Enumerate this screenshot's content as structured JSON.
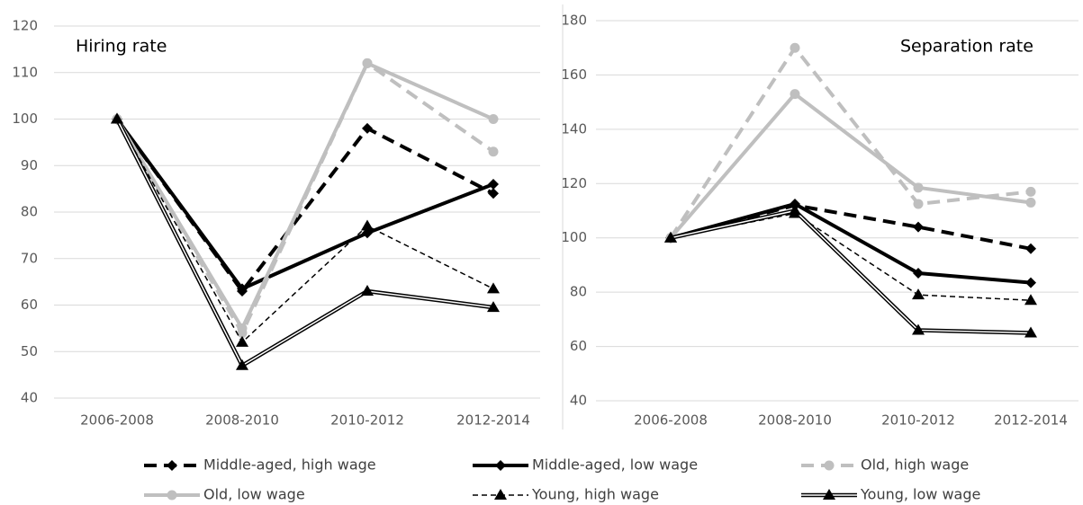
{
  "chart_data": [
    {
      "type": "line",
      "title": "Hiring rate",
      "categories": [
        "2006-2008",
        "2008-2010",
        "2010-2012",
        "2012-2014"
      ],
      "ylim": [
        40,
        120
      ],
      "yticks": [
        40,
        50,
        60,
        70,
        80,
        90,
        100,
        110,
        120
      ],
      "grid": true,
      "series": [
        {
          "name": "Middle-aged, high wage",
          "color": "#000000",
          "dash": true,
          "marker": "diamond",
          "values": [
            100,
            63,
            98,
            84
          ]
        },
        {
          "name": "Middle-aged, low wage",
          "color": "#000000",
          "dash": false,
          "marker": "diamond",
          "values": [
            100,
            63.5,
            75.5,
            86
          ]
        },
        {
          "name": "Old, high wage",
          "color": "#bfbfbf",
          "dash": true,
          "marker": "circle",
          "values": [
            100,
            54,
            112,
            93
          ]
        },
        {
          "name": "Old, low wage",
          "color": "#bfbfbf",
          "dash": false,
          "marker": "circle",
          "values": [
            100,
            55,
            112,
            100
          ]
        },
        {
          "name": "Young, high wage",
          "color": "#000000",
          "dash": true,
          "marker": "triangle",
          "thin": true,
          "values": [
            100,
            52,
            77,
            63.5
          ]
        },
        {
          "name": "Young, low wage",
          "color": "#000000",
          "dash": false,
          "marker": "triangle",
          "double": true,
          "values": [
            100,
            47,
            63,
            59.5
          ]
        }
      ]
    },
    {
      "type": "line",
      "title": "Separation rate",
      "categories": [
        "2006-2008",
        "2008-2010",
        "2010-2012",
        "2012-2014"
      ],
      "ylim": [
        40,
        180
      ],
      "yticks": [
        40,
        60,
        80,
        100,
        120,
        140,
        160,
        180
      ],
      "grid": true,
      "series": [
        {
          "color": "#000000",
          "dash": true,
          "marker": "diamond",
          "values": [
            100,
            112,
            104,
            96
          ]
        },
        {
          "color": "#000000",
          "dash": false,
          "marker": "diamond",
          "values": [
            100,
            112.5,
            87,
            83.5
          ]
        },
        {
          "color": "#bfbfbf",
          "dash": true,
          "marker": "circle",
          "values": [
            100,
            170,
            112.5,
            117
          ]
        },
        {
          "color": "#bfbfbf",
          "dash": false,
          "marker": "circle",
          "values": [
            100,
            153,
            118.5,
            113
          ]
        },
        {
          "color": "#000000",
          "dash": true,
          "marker": "triangle",
          "thin": true,
          "values": [
            100,
            109,
            79,
            77
          ]
        },
        {
          "color": "#000000",
          "dash": false,
          "marker": "triangle",
          "double": true,
          "values": [
            100,
            110,
            66,
            65
          ]
        }
      ]
    }
  ]
}
